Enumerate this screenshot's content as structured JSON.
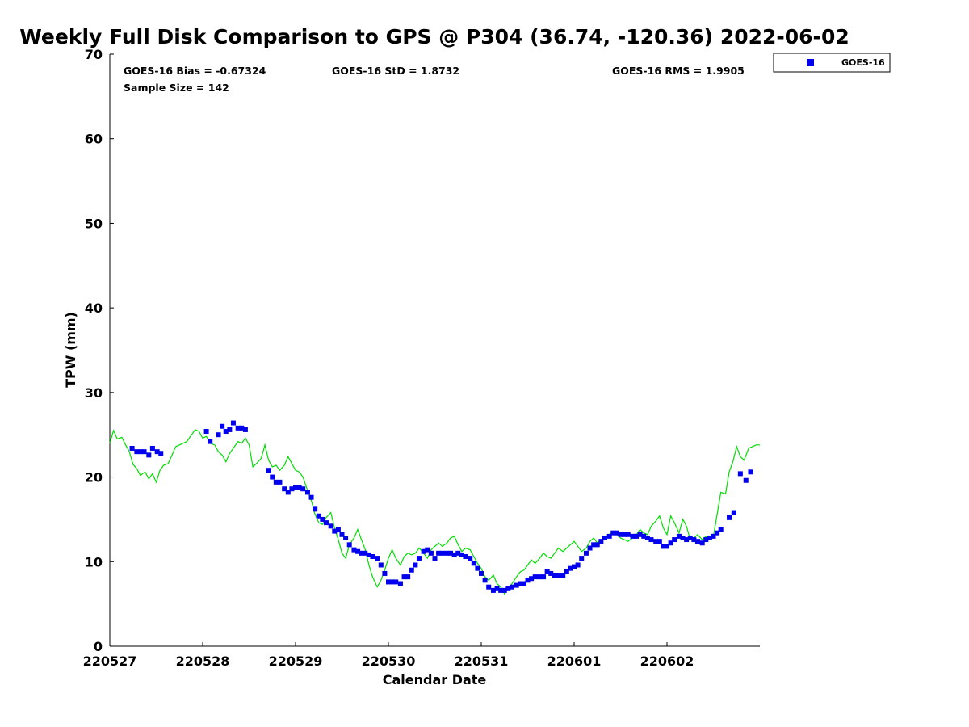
{
  "chart_data": {
    "type": "scatter",
    "title": "Weekly Full Disk Comparison to GPS @ P304 (36.74, -120.36) 2022-06-02",
    "xlabel": "Calendar Date",
    "ylabel": "TPW (mm)",
    "xlim": [
      0,
      7.0
    ],
    "ylim": [
      0,
      70
    ],
    "x_ticks": [
      0,
      1,
      2,
      3,
      4,
      5,
      6
    ],
    "x_tick_labels": [
      "220527",
      "220528",
      "220529",
      "220530",
      "220531",
      "220601",
      "220602"
    ],
    "y_ticks": [
      0,
      10,
      20,
      30,
      40,
      50,
      60,
      70
    ],
    "stats": {
      "bias": "GOES-16 Bias = -0.67324",
      "std": "GOES-16 StD = 1.8732",
      "rms": "GOES-16 RMS = 1.9905",
      "sample_size": "Sample Size = 142"
    },
    "legend": {
      "position": "outside-top-right",
      "entries": [
        "GOES-16"
      ]
    },
    "colors": {
      "goes": "#0000ee",
      "gps": "#00dd00"
    },
    "series": [
      {
        "name": "GOES-16",
        "style": "square-markers",
        "points": [
          [
            0.24,
            23.4
          ],
          [
            0.29,
            23.0
          ],
          [
            0.33,
            23.0
          ],
          [
            0.37,
            23.0
          ],
          [
            0.42,
            22.6
          ],
          [
            0.46,
            23.4
          ],
          [
            0.51,
            23.0
          ],
          [
            0.55,
            22.8
          ],
          [
            1.04,
            25.4
          ],
          [
            1.08,
            24.2
          ],
          [
            1.17,
            25.0
          ],
          [
            1.21,
            26.0
          ],
          [
            1.25,
            25.4
          ],
          [
            1.29,
            25.6
          ],
          [
            1.33,
            26.4
          ],
          [
            1.38,
            25.8
          ],
          [
            1.42,
            25.8
          ],
          [
            1.46,
            25.6
          ],
          [
            1.71,
            20.8
          ],
          [
            1.75,
            20.0
          ],
          [
            1.79,
            19.4
          ],
          [
            1.83,
            19.4
          ],
          [
            1.88,
            18.6
          ],
          [
            1.92,
            18.2
          ],
          [
            1.96,
            18.6
          ],
          [
            2.0,
            18.8
          ],
          [
            2.04,
            18.8
          ],
          [
            2.08,
            18.6
          ],
          [
            2.13,
            18.2
          ],
          [
            2.17,
            17.6
          ],
          [
            2.21,
            16.2
          ],
          [
            2.25,
            15.4
          ],
          [
            2.29,
            15.0
          ],
          [
            2.33,
            14.6
          ],
          [
            2.38,
            14.2
          ],
          [
            2.42,
            13.6
          ],
          [
            2.46,
            13.8
          ],
          [
            2.5,
            13.2
          ],
          [
            2.54,
            12.8
          ],
          [
            2.58,
            12.0
          ],
          [
            2.63,
            11.4
          ],
          [
            2.67,
            11.2
          ],
          [
            2.71,
            11.0
          ],
          [
            2.75,
            11.0
          ],
          [
            2.79,
            10.8
          ],
          [
            2.83,
            10.6
          ],
          [
            2.88,
            10.4
          ],
          [
            2.92,
            9.6
          ],
          [
            2.96,
            8.6
          ],
          [
            3.0,
            7.6
          ],
          [
            3.04,
            7.6
          ],
          [
            3.08,
            7.6
          ],
          [
            3.13,
            7.4
          ],
          [
            3.17,
            8.2
          ],
          [
            3.21,
            8.2
          ],
          [
            3.25,
            9.0
          ],
          [
            3.29,
            9.6
          ],
          [
            3.33,
            10.4
          ],
          [
            3.38,
            11.2
          ],
          [
            3.42,
            11.4
          ],
          [
            3.46,
            11.0
          ],
          [
            3.5,
            10.4
          ],
          [
            3.54,
            11.0
          ],
          [
            3.58,
            11.0
          ],
          [
            3.63,
            11.0
          ],
          [
            3.67,
            11.0
          ],
          [
            3.71,
            10.8
          ],
          [
            3.75,
            11.0
          ],
          [
            3.79,
            10.8
          ],
          [
            3.83,
            10.6
          ],
          [
            3.88,
            10.4
          ],
          [
            3.92,
            9.8
          ],
          [
            3.96,
            9.2
          ],
          [
            4.0,
            8.6
          ],
          [
            4.04,
            7.8
          ],
          [
            4.08,
            7.0
          ],
          [
            4.13,
            6.6
          ],
          [
            4.17,
            6.8
          ],
          [
            4.21,
            6.6
          ],
          [
            4.25,
            6.6
          ],
          [
            4.29,
            6.8
          ],
          [
            4.33,
            7.0
          ],
          [
            4.38,
            7.2
          ],
          [
            4.42,
            7.4
          ],
          [
            4.46,
            7.4
          ],
          [
            4.5,
            7.8
          ],
          [
            4.54,
            8.0
          ],
          [
            4.58,
            8.2
          ],
          [
            4.63,
            8.2
          ],
          [
            4.67,
            8.2
          ],
          [
            4.71,
            8.8
          ],
          [
            4.75,
            8.6
          ],
          [
            4.79,
            8.4
          ],
          [
            4.83,
            8.4
          ],
          [
            4.88,
            8.4
          ],
          [
            4.92,
            8.8
          ],
          [
            4.96,
            9.2
          ],
          [
            5.0,
            9.4
          ],
          [
            5.04,
            9.6
          ],
          [
            5.08,
            10.4
          ],
          [
            5.13,
            11.0
          ],
          [
            5.17,
            11.6
          ],
          [
            5.21,
            12.0
          ],
          [
            5.25,
            12.0
          ],
          [
            5.29,
            12.4
          ],
          [
            5.33,
            12.8
          ],
          [
            5.38,
            13.0
          ],
          [
            5.42,
            13.4
          ],
          [
            5.46,
            13.4
          ],
          [
            5.5,
            13.2
          ],
          [
            5.54,
            13.2
          ],
          [
            5.58,
            13.2
          ],
          [
            5.63,
            13.0
          ],
          [
            5.67,
            13.0
          ],
          [
            5.71,
            13.2
          ],
          [
            5.75,
            13.0
          ],
          [
            5.79,
            12.8
          ],
          [
            5.83,
            12.6
          ],
          [
            5.88,
            12.4
          ],
          [
            5.92,
            12.4
          ],
          [
            5.96,
            11.8
          ],
          [
            6.0,
            11.8
          ],
          [
            6.04,
            12.2
          ],
          [
            6.08,
            12.6
          ],
          [
            6.13,
            13.0
          ],
          [
            6.17,
            12.8
          ],
          [
            6.21,
            12.6
          ],
          [
            6.25,
            12.8
          ],
          [
            6.29,
            12.6
          ],
          [
            6.33,
            12.4
          ],
          [
            6.38,
            12.2
          ],
          [
            6.42,
            12.6
          ],
          [
            6.46,
            12.8
          ],
          [
            6.5,
            13.0
          ],
          [
            6.54,
            13.4
          ],
          [
            6.58,
            13.8
          ],
          [
            6.67,
            15.2
          ],
          [
            6.72,
            15.8
          ],
          [
            6.79,
            20.4
          ],
          [
            6.85,
            19.6
          ],
          [
            6.9,
            20.6
          ]
        ]
      },
      {
        "name": "GPS",
        "style": "line",
        "points": [
          [
            0.0,
            24.0
          ],
          [
            0.04,
            25.5
          ],
          [
            0.08,
            24.5
          ],
          [
            0.13,
            24.7
          ],
          [
            0.17,
            23.8
          ],
          [
            0.21,
            23.0
          ],
          [
            0.25,
            21.5
          ],
          [
            0.29,
            21.0
          ],
          [
            0.33,
            20.2
          ],
          [
            0.38,
            20.6
          ],
          [
            0.42,
            19.8
          ],
          [
            0.46,
            20.4
          ],
          [
            0.5,
            19.4
          ],
          [
            0.54,
            20.8
          ],
          [
            0.58,
            21.4
          ],
          [
            0.63,
            21.6
          ],
          [
            0.67,
            22.6
          ],
          [
            0.71,
            23.6
          ],
          [
            0.75,
            23.8
          ],
          [
            0.79,
            24.0
          ],
          [
            0.83,
            24.2
          ],
          [
            0.88,
            25.0
          ],
          [
            0.92,
            25.6
          ],
          [
            0.96,
            25.4
          ],
          [
            1.0,
            24.6
          ],
          [
            1.04,
            24.8
          ],
          [
            1.08,
            24.0
          ],
          [
            1.13,
            23.8
          ],
          [
            1.17,
            23.0
          ],
          [
            1.21,
            22.6
          ],
          [
            1.25,
            21.8
          ],
          [
            1.29,
            22.8
          ],
          [
            1.33,
            23.4
          ],
          [
            1.38,
            24.2
          ],
          [
            1.42,
            24.0
          ],
          [
            1.46,
            24.6
          ],
          [
            1.5,
            23.8
          ],
          [
            1.54,
            21.2
          ],
          [
            1.58,
            21.6
          ],
          [
            1.63,
            22.2
          ],
          [
            1.67,
            23.8
          ],
          [
            1.71,
            22.0
          ],
          [
            1.75,
            21.2
          ],
          [
            1.79,
            21.4
          ],
          [
            1.83,
            20.8
          ],
          [
            1.88,
            21.4
          ],
          [
            1.92,
            22.4
          ],
          [
            1.96,
            21.6
          ],
          [
            2.0,
            20.8
          ],
          [
            2.04,
            20.6
          ],
          [
            2.08,
            20.0
          ],
          [
            2.13,
            18.4
          ],
          [
            2.17,
            17.2
          ],
          [
            2.21,
            15.6
          ],
          [
            2.25,
            14.6
          ],
          [
            2.29,
            14.4
          ],
          [
            2.33,
            15.2
          ],
          [
            2.38,
            15.8
          ],
          [
            2.42,
            14.0
          ],
          [
            2.46,
            12.6
          ],
          [
            2.5,
            11.0
          ],
          [
            2.54,
            10.4
          ],
          [
            2.58,
            12.0
          ],
          [
            2.63,
            12.8
          ],
          [
            2.67,
            13.8
          ],
          [
            2.71,
            12.6
          ],
          [
            2.75,
            11.4
          ],
          [
            2.79,
            9.6
          ],
          [
            2.83,
            8.2
          ],
          [
            2.88,
            7.0
          ],
          [
            2.92,
            7.8
          ],
          [
            2.96,
            9.0
          ],
          [
            3.0,
            10.4
          ],
          [
            3.04,
            11.4
          ],
          [
            3.08,
            10.4
          ],
          [
            3.13,
            9.6
          ],
          [
            3.17,
            10.6
          ],
          [
            3.21,
            11.0
          ],
          [
            3.25,
            10.8
          ],
          [
            3.29,
            11.0
          ],
          [
            3.33,
            11.6
          ],
          [
            3.38,
            11.0
          ],
          [
            3.42,
            10.4
          ],
          [
            3.46,
            11.4
          ],
          [
            3.5,
            11.8
          ],
          [
            3.54,
            12.2
          ],
          [
            3.58,
            11.8
          ],
          [
            3.63,
            12.2
          ],
          [
            3.67,
            12.8
          ],
          [
            3.71,
            13.0
          ],
          [
            3.75,
            12.0
          ],
          [
            3.79,
            11.2
          ],
          [
            3.83,
            11.6
          ],
          [
            3.88,
            11.4
          ],
          [
            3.92,
            10.6
          ],
          [
            3.96,
            9.8
          ],
          [
            4.0,
            9.2
          ],
          [
            4.04,
            8.2
          ],
          [
            4.08,
            7.8
          ],
          [
            4.13,
            8.4
          ],
          [
            4.17,
            7.4
          ],
          [
            4.21,
            7.0
          ],
          [
            4.25,
            6.2
          ],
          [
            4.29,
            6.8
          ],
          [
            4.33,
            7.4
          ],
          [
            4.38,
            8.2
          ],
          [
            4.42,
            8.8
          ],
          [
            4.46,
            9.0
          ],
          [
            4.5,
            9.6
          ],
          [
            4.54,
            10.2
          ],
          [
            4.58,
            9.8
          ],
          [
            4.63,
            10.4
          ],
          [
            4.67,
            11.0
          ],
          [
            4.71,
            10.6
          ],
          [
            4.75,
            10.4
          ],
          [
            4.79,
            11.0
          ],
          [
            4.83,
            11.6
          ],
          [
            4.88,
            11.2
          ],
          [
            4.92,
            11.6
          ],
          [
            4.96,
            12.0
          ],
          [
            5.0,
            12.4
          ],
          [
            5.04,
            11.8
          ],
          [
            5.08,
            11.2
          ],
          [
            5.13,
            11.6
          ],
          [
            5.17,
            12.4
          ],
          [
            5.21,
            12.8
          ],
          [
            5.25,
            12.2
          ],
          [
            5.29,
            12.6
          ],
          [
            5.33,
            12.8
          ],
          [
            5.38,
            13.2
          ],
          [
            5.42,
            13.6
          ],
          [
            5.46,
            13.2
          ],
          [
            5.5,
            12.8
          ],
          [
            5.54,
            12.6
          ],
          [
            5.58,
            12.4
          ],
          [
            5.63,
            12.8
          ],
          [
            5.67,
            13.2
          ],
          [
            5.71,
            13.8
          ],
          [
            5.75,
            13.4
          ],
          [
            5.79,
            13.2
          ],
          [
            5.83,
            14.2
          ],
          [
            5.88,
            14.8
          ],
          [
            5.92,
            15.4
          ],
          [
            5.96,
            14.0
          ],
          [
            6.0,
            13.2
          ],
          [
            6.04,
            15.4
          ],
          [
            6.08,
            14.6
          ],
          [
            6.13,
            13.4
          ],
          [
            6.17,
            15.0
          ],
          [
            6.21,
            14.2
          ],
          [
            6.25,
            12.6
          ],
          [
            6.29,
            12.8
          ],
          [
            6.33,
            13.2
          ],
          [
            6.38,
            12.6
          ],
          [
            6.42,
            13.0
          ],
          [
            6.46,
            12.8
          ],
          [
            6.5,
            13.0
          ],
          [
            6.54,
            15.6
          ],
          [
            6.58,
            18.2
          ],
          [
            6.63,
            18.0
          ],
          [
            6.67,
            20.6
          ],
          [
            6.71,
            21.8
          ],
          [
            6.75,
            23.6
          ],
          [
            6.79,
            22.4
          ],
          [
            6.83,
            22.0
          ],
          [
            6.88,
            23.4
          ],
          [
            6.92,
            23.6
          ],
          [
            6.96,
            23.8
          ],
          [
            7.0,
            23.8
          ]
        ]
      }
    ]
  }
}
